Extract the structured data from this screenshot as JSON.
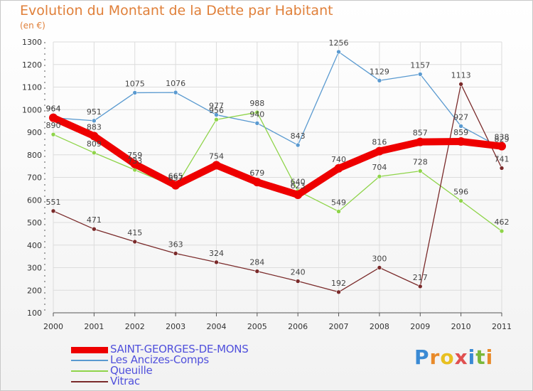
{
  "title": "Evolution du Montant de la Dette par Habitant",
  "subtitle": "(en €)",
  "colors": {
    "title": "#e0803a",
    "grid": "#dcdcdc",
    "axis": "#333333",
    "legend_text": "#5050dc"
  },
  "logo": {
    "text": "Proxiti",
    "letters": [
      "P",
      "r",
      "o",
      "x",
      "i",
      "t",
      "i"
    ],
    "letter_colors": [
      "#3a8ad4",
      "#e88a2a",
      "#e8c020",
      "#e05050",
      "#3a8ad4",
      "#7ab83a",
      "#e88a2a"
    ]
  },
  "chart_data": {
    "type": "line",
    "title": "Evolution du Montant de la Dette par Habitant",
    "subtitle": "(en €)",
    "xlabel": "",
    "ylabel": "",
    "x": [
      "2000",
      "2001",
      "2002",
      "2003",
      "2004",
      "2005",
      "2006",
      "2007",
      "2008",
      "2009",
      "2010",
      "2011"
    ],
    "ylim": [
      100,
      1300
    ],
    "yticks": [
      100,
      200,
      300,
      400,
      500,
      600,
      700,
      800,
      900,
      1000,
      1100,
      1200,
      1300
    ],
    "grid": true,
    "legend_position": "bottom-left",
    "series": [
      {
        "name": "Les Ancizes-Comps",
        "color": "#5a9ad0",
        "emphasis": false,
        "values": [
          964,
          951,
          1075,
          1076,
          977,
          940,
          843,
          1256,
          1129,
          1157,
          927,
          829
        ],
        "labels": [
          "964",
          "951",
          "1075",
          "1076",
          "977",
          "940",
          "843",
          "1256",
          "1129",
          "1157",
          "927",
          "829"
        ]
      },
      {
        "name": "Queuille",
        "color": "#8fd44a",
        "emphasis": false,
        "values": [
          890,
          809,
          733,
          657,
          956,
          988,
          640,
          549,
          704,
          728,
          596,
          462
        ],
        "labels": [
          "890",
          "809",
          "733",
          "657",
          "956",
          "988",
          "640",
          "549",
          "704",
          "728",
          "596",
          "462"
        ]
      },
      {
        "name": "Vitrac",
        "color": "#7a2a2a",
        "emphasis": false,
        "values": [
          551,
          471,
          415,
          363,
          324,
          284,
          240,
          192,
          300,
          217,
          1113,
          741
        ],
        "labels": [
          "551",
          "471",
          "415",
          "363",
          "324",
          "284",
          "240",
          "192",
          "300",
          "217",
          "1113",
          "741"
        ]
      },
      {
        "name": "SAINT-GEORGES-DE-MONS",
        "color": "#ee0000",
        "emphasis": true,
        "values": [
          964,
          883,
          759,
          665,
          754,
          679,
          623,
          740,
          816,
          857,
          859,
          838
        ],
        "labels": [
          "964",
          "883",
          "759",
          "665",
          "754",
          "679",
          "623",
          "740",
          "816",
          "857",
          "859",
          "838"
        ]
      }
    ],
    "legend_order": [
      "SAINT-GEORGES-DE-MONS",
      "Les Ancizes-Comps",
      "Queuille",
      "Vitrac"
    ]
  }
}
